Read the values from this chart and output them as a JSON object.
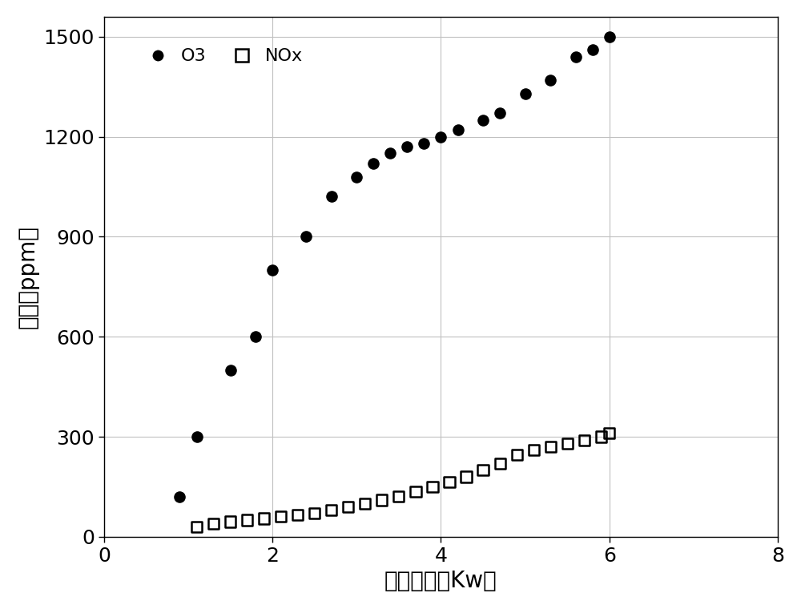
{
  "O3_x": [
    0.9,
    1.1,
    1.5,
    1.8,
    2.0,
    2.4,
    2.7,
    3.0,
    3.2,
    3.4,
    3.6,
    3.8,
    4.0,
    4.2,
    4.5,
    4.7,
    5.0,
    5.3,
    5.6,
    5.8,
    6.0
  ],
  "O3_y": [
    120,
    300,
    500,
    600,
    800,
    900,
    1020,
    1080,
    1120,
    1150,
    1170,
    1180,
    1200,
    1220,
    1250,
    1270,
    1330,
    1370,
    1440,
    1460,
    1500
  ],
  "NOx_x": [
    1.1,
    1.3,
    1.5,
    1.7,
    1.9,
    2.1,
    2.3,
    2.5,
    2.7,
    2.9,
    3.1,
    3.3,
    3.5,
    3.7,
    3.9,
    4.1,
    4.3,
    4.5,
    4.7,
    4.9,
    5.1,
    5.3,
    5.5,
    5.7,
    5.9,
    6.0
  ],
  "NOx_y": [
    30,
    40,
    45,
    50,
    55,
    60,
    65,
    70,
    80,
    90,
    100,
    110,
    120,
    135,
    150,
    165,
    180,
    200,
    220,
    245,
    260,
    270,
    280,
    290,
    300,
    310
  ],
  "xlim": [
    0,
    8
  ],
  "ylim": [
    0,
    1560
  ],
  "xticks": [
    0,
    2,
    4,
    6,
    8
  ],
  "yticks": [
    0,
    300,
    600,
    900,
    1200,
    1500
  ],
  "xlabel": "输入功率（Kw）",
  "ylabel": "浓度）ppm）",
  "xlabel_fontsize": 20,
  "ylabel_fontsize": 20,
  "tick_fontsize": 18,
  "legend_fontsize": 16,
  "background_color": "#ffffff",
  "grid_color": "#c0c0c0",
  "marker_size": 90
}
